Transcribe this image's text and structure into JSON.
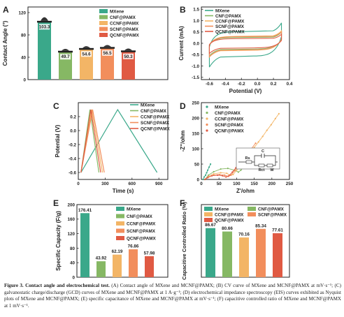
{
  "colors": {
    "MXene": "#3aa88a",
    "CNF@PAMX": "#86b864",
    "CCNF@PAMX": "#f3b566",
    "SCNF@PAMX": "#f28e5c",
    "QCNF@PAMX": "#e05a43"
  },
  "chart_data": [
    {
      "panel": "A",
      "type": "bar",
      "categories": [
        "MXene",
        "CNF@PAMX",
        "CCNF@PAMX",
        "SCNF@PAMX",
        "QCNF@PAMX"
      ],
      "values": [
        103.3,
        49.7,
        54.6,
        56.5,
        50.3
      ],
      "value_labels": [
        "103.3",
        "49.7",
        "54.6",
        "56.5",
        "50.3"
      ],
      "xlabel": "",
      "ylabel": "Contact Angle (°)",
      "ylim": [
        0,
        130
      ],
      "yticks": [
        0,
        40,
        80,
        120
      ],
      "legend": [
        "MXene",
        "CNF@PAMX",
        "CCNF@PAMX",
        "SCNF@PAMX",
        "QCNF@PAMX"
      ],
      "legend_position": "top-right"
    },
    {
      "panel": "B",
      "type": "line",
      "xlabel": "Potential (V)",
      "ylabel": "Current (mA)",
      "xlim": [
        -0.7,
        0.4
      ],
      "ylim": [
        -1.6,
        1.6
      ],
      "xticks": [
        "-0.6",
        "-0.4",
        "-0.2",
        "0.0",
        "0.2",
        "0.4"
      ],
      "yticks": [
        "-1.5",
        "-1.0",
        "-0.5",
        "0.0",
        "0.5",
        "1.0",
        "1.5"
      ],
      "legend": [
        "MXene",
        "CNF@PAMX",
        "CCNF@PAMX",
        "SCNF@PAMX",
        "QCNF@PAMX"
      ],
      "legend_position": "top-left",
      "series": [
        {
          "name": "MXene",
          "x_lo": -0.6,
          "x_hi": 0.3,
          "i_top": 0.5,
          "i_bot": -0.55,
          "top_end": 0.9,
          "bot_start": -1.05
        },
        {
          "name": "CNF@PAMX",
          "x_lo": -0.6,
          "x_hi": 0.3,
          "i_top": 0.25,
          "i_bot": -0.25,
          "top_end": 0.5,
          "bot_start": -0.55
        },
        {
          "name": "CCNF@PAMX",
          "x_lo": -0.6,
          "x_hi": 0.3,
          "i_top": 0.3,
          "i_bot": -0.3,
          "top_end": 0.55,
          "bot_start": -0.6
        },
        {
          "name": "SCNF@PAMX",
          "x_lo": -0.6,
          "x_hi": 0.3,
          "i_top": 0.28,
          "i_bot": -0.28,
          "top_end": 0.5,
          "bot_start": -0.6
        },
        {
          "name": "QCNF@PAMX",
          "x_lo": -0.6,
          "x_hi": 0.3,
          "i_top": 0.2,
          "i_bot": -0.2,
          "top_end": 0.4,
          "bot_start": -0.45
        }
      ]
    },
    {
      "panel": "C",
      "type": "line",
      "xlabel": "Time (s)",
      "ylabel": "Potential (V)",
      "xlim": [
        0,
        1000
      ],
      "ylim": [
        -0.7,
        0.4
      ],
      "xticks": [
        "0",
        "300",
        "600",
        "900"
      ],
      "yticks": [
        "-0.6",
        "-0.4",
        "-0.2",
        "0.0",
        "0.2"
      ],
      "legend": [
        "MXene",
        "CNF@PAMX",
        "CCNF@PAMX",
        "SCNF@PAMX",
        "QCNF@PAMX"
      ],
      "legend_position": "top-right",
      "series": [
        {
          "name": "MXene",
          "x": [
            30,
            440,
            880
          ],
          "y": [
            -0.6,
            0.3,
            -0.6
          ]
        },
        {
          "name": "CNF@PAMX",
          "x": [
            30,
            130,
            230
          ],
          "y": [
            -0.6,
            0.3,
            -0.6
          ]
        },
        {
          "name": "CCNF@PAMX",
          "x": [
            30,
            150,
            270
          ],
          "y": [
            -0.6,
            0.3,
            -0.6
          ]
        },
        {
          "name": "SCNF@PAMX",
          "x": [
            30,
            160,
            290
          ],
          "y": [
            -0.6,
            0.3,
            -0.6
          ]
        },
        {
          "name": "QCNF@PAMX",
          "x": [
            30,
            140,
            250
          ],
          "y": [
            -0.6,
            0.3,
            -0.6
          ]
        }
      ]
    },
    {
      "panel": "D",
      "type": "scatter",
      "xlabel": "Z'/ohm",
      "ylabel": "-Z''/ohm",
      "xlim": [
        0,
        250
      ],
      "ylim": [
        0,
        250
      ],
      "xticks": [
        "0",
        "50",
        "100",
        "150",
        "200",
        "250"
      ],
      "yticks": [
        "0",
        "50",
        "100",
        "150",
        "200",
        "250"
      ],
      "legend": [
        "MXene",
        "CNF@PAMX",
        "CCNF@PAMX",
        "SCNF@PAMX",
        "QCNF@PAMX"
      ],
      "legend_position": "top-left",
      "inset_labels": {
        "Rs": "Rs",
        "C": "C",
        "Rct": "Rct",
        "W": "W"
      }
    },
    {
      "panel": "E",
      "type": "bar",
      "categories": [
        "MXene",
        "CNF@PAMX",
        "CCNF@PAMX",
        "SCNF@PAMX",
        "QCNF@PAMX"
      ],
      "values": [
        176.41,
        43.92,
        62.19,
        76.86,
        57.98
      ],
      "value_labels": [
        "176.41",
        "43.92",
        "62.19",
        "76.86",
        "57.98"
      ],
      "xlabel": "",
      "ylabel": "Specific Capacity (F/g)",
      "ylim": [
        0,
        200
      ],
      "yticks": [
        0,
        40,
        80,
        120,
        160,
        200
      ],
      "legend": [
        "MXene",
        "CNF@PAMX",
        "CCNF@PAMX",
        "SCNF@PAMX",
        "QCNF@PAMX"
      ],
      "legend_position": "top-right"
    },
    {
      "panel": "F",
      "type": "bar",
      "categories": [
        "MXene",
        "CNF@PAMX",
        "CCNF@PAMX",
        "SCNF@PAMX",
        "QCNF@PAMX"
      ],
      "values": [
        86.67,
        80.66,
        70.16,
        85.34,
        77.61
      ],
      "value_labels": [
        "86.67",
        "80.66",
        "70.16",
        "85.34",
        "77.61"
      ],
      "xlabel": "",
      "ylabel": "Capacitive Controlled Ratio (%)",
      "ylim": [
        0,
        100
      ],
      "yticks": [
        0,
        20,
        40,
        60,
        80,
        100
      ],
      "legend": [
        "MXene",
        "CNF@PAMX",
        "CCNF@PAMX",
        "SCNF@PAMX",
        "QCNF@PAMX"
      ],
      "legend_position": "top"
    }
  ],
  "caption": {
    "lead": "Figure 3. Contact angle and electrochemical test.",
    "body": " (A) Contact angle of MXene and MCNF@PAMX; (B) CV curve of MXene and MCNF@PAMX at mV·s⁻¹; (C) galvanostatic charge/discharge (GCD) curves of MXene and MCNF@PAMX at 1 A·g⁻¹; (D) electrochemical impedance spectroscopy (EIS) curves exhibited as Nyquist plots of MXene and MCNF@PAMX; (E) specific capacitance of MXene and MCNF@PAMX at mV·s⁻¹; (F) capacitive controlled ratio of MXene and MCNF@PAMX at 1 mV·s⁻¹."
  }
}
